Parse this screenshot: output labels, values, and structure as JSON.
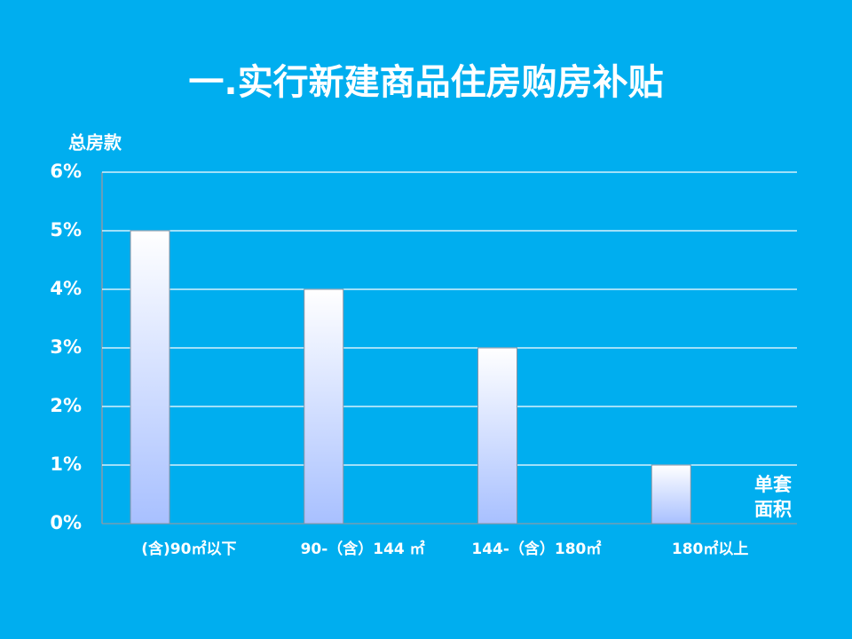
{
  "chart_data": {
    "type": "bar",
    "title": "一.实行新建商品住房购房补贴",
    "y_label": "总房款",
    "x_label": "单套面积",
    "categories": [
      "(含)90㎡以下",
      "90-（含）144 ㎡",
      "144-（含）180㎡",
      "180㎡以上"
    ],
    "values": [
      5,
      4,
      3,
      1
    ],
    "color": "#a8c0ff",
    "ylim": [
      0,
      6
    ],
    "yticks": [
      {
        "value": 0,
        "label": "0%"
      },
      {
        "value": 1,
        "label": "1%"
      },
      {
        "value": 2,
        "label": "2%"
      },
      {
        "value": 3,
        "label": "3%"
      },
      {
        "value": 4,
        "label": "4%"
      },
      {
        "value": 5,
        "label": "5%"
      },
      {
        "value": 6,
        "label": "6%"
      }
    ],
    "grid": true
  }
}
